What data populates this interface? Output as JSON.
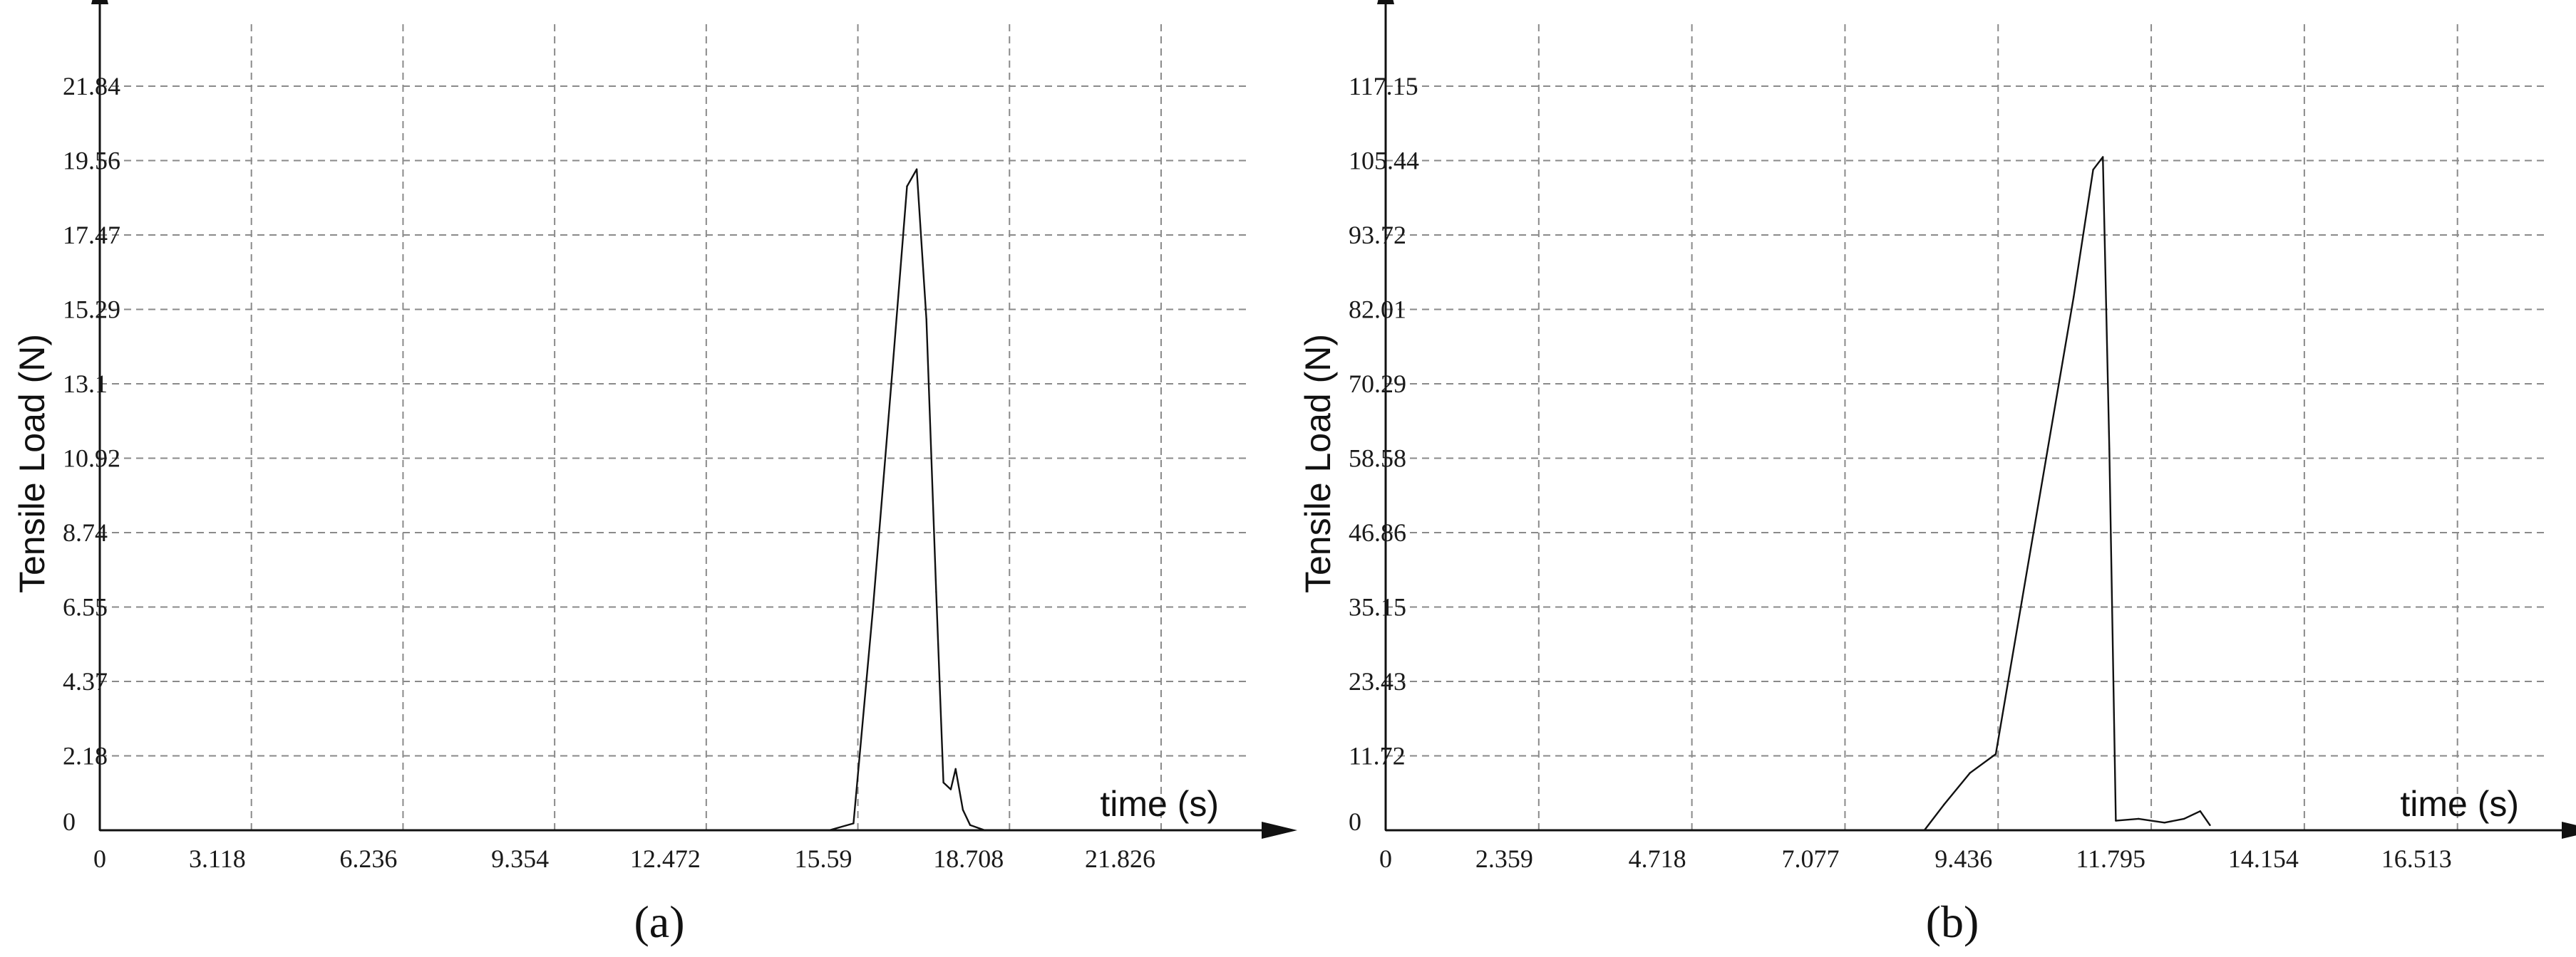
{
  "chart_data": [
    {
      "type": "line",
      "panel_label": "(a)",
      "xlabel": "time (s)",
      "ylabel": "Tensile Load (N)",
      "x_ticks": [
        "0",
        "3.118",
        "6.236",
        "9.354",
        "12.472",
        "15.59",
        "18.708",
        "21.826"
      ],
      "y_ticks": [
        "0",
        "2.18",
        "4.37",
        "6.55",
        "8.74",
        "10.92",
        "13.1",
        "15.29",
        "17.47",
        "19.56",
        "21.84"
      ],
      "xlim": [
        0,
        23.6
      ],
      "ylim": [
        0,
        21.84
      ],
      "grid": true,
      "series": [
        {
          "x": [
            0,
            15.0,
            15.5,
            15.9,
            16.3,
            16.6,
            16.8,
            17.0,
            17.2,
            17.35,
            17.5,
            17.6,
            17.75,
            17.9,
            18.2,
            19.0
          ],
          "y": [
            0,
            0,
            0.2,
            6.5,
            13.5,
            18.9,
            19.4,
            15.0,
            7.0,
            1.4,
            1.2,
            1.8,
            0.6,
            0.15,
            0,
            0
          ]
        }
      ]
    },
    {
      "type": "line",
      "panel_label": "(b)",
      "xlabel": "time (s)",
      "ylabel": "Tensile Load (N)",
      "x_ticks": [
        "0",
        "2.359",
        "4.718",
        "7.077",
        "9.436",
        "11.795",
        "14.154",
        "16.513"
      ],
      "y_ticks": [
        "0",
        "11.72",
        "23.43",
        "35.15",
        "46.86",
        "58.58",
        "70.29",
        "82.01",
        "93.72",
        "105.44",
        "117.15"
      ],
      "xlim": [
        0,
        17.9
      ],
      "ylim": [
        0,
        117.15
      ],
      "grid": true,
      "series": [
        {
          "x": [
            0,
            8.3,
            8.6,
            9.0,
            9.4,
            9.8,
            10.2,
            10.6,
            10.9,
            11.05,
            11.15,
            11.25,
            11.6,
            12.0,
            12.3,
            12.55,
            12.7
          ],
          "y": [
            0,
            0,
            4.0,
            9.0,
            12.0,
            36.0,
            60.0,
            84.0,
            104.0,
            106.0,
            60.0,
            1.5,
            1.8,
            1.2,
            1.8,
            3.0,
            0.8
          ]
        }
      ]
    }
  ]
}
